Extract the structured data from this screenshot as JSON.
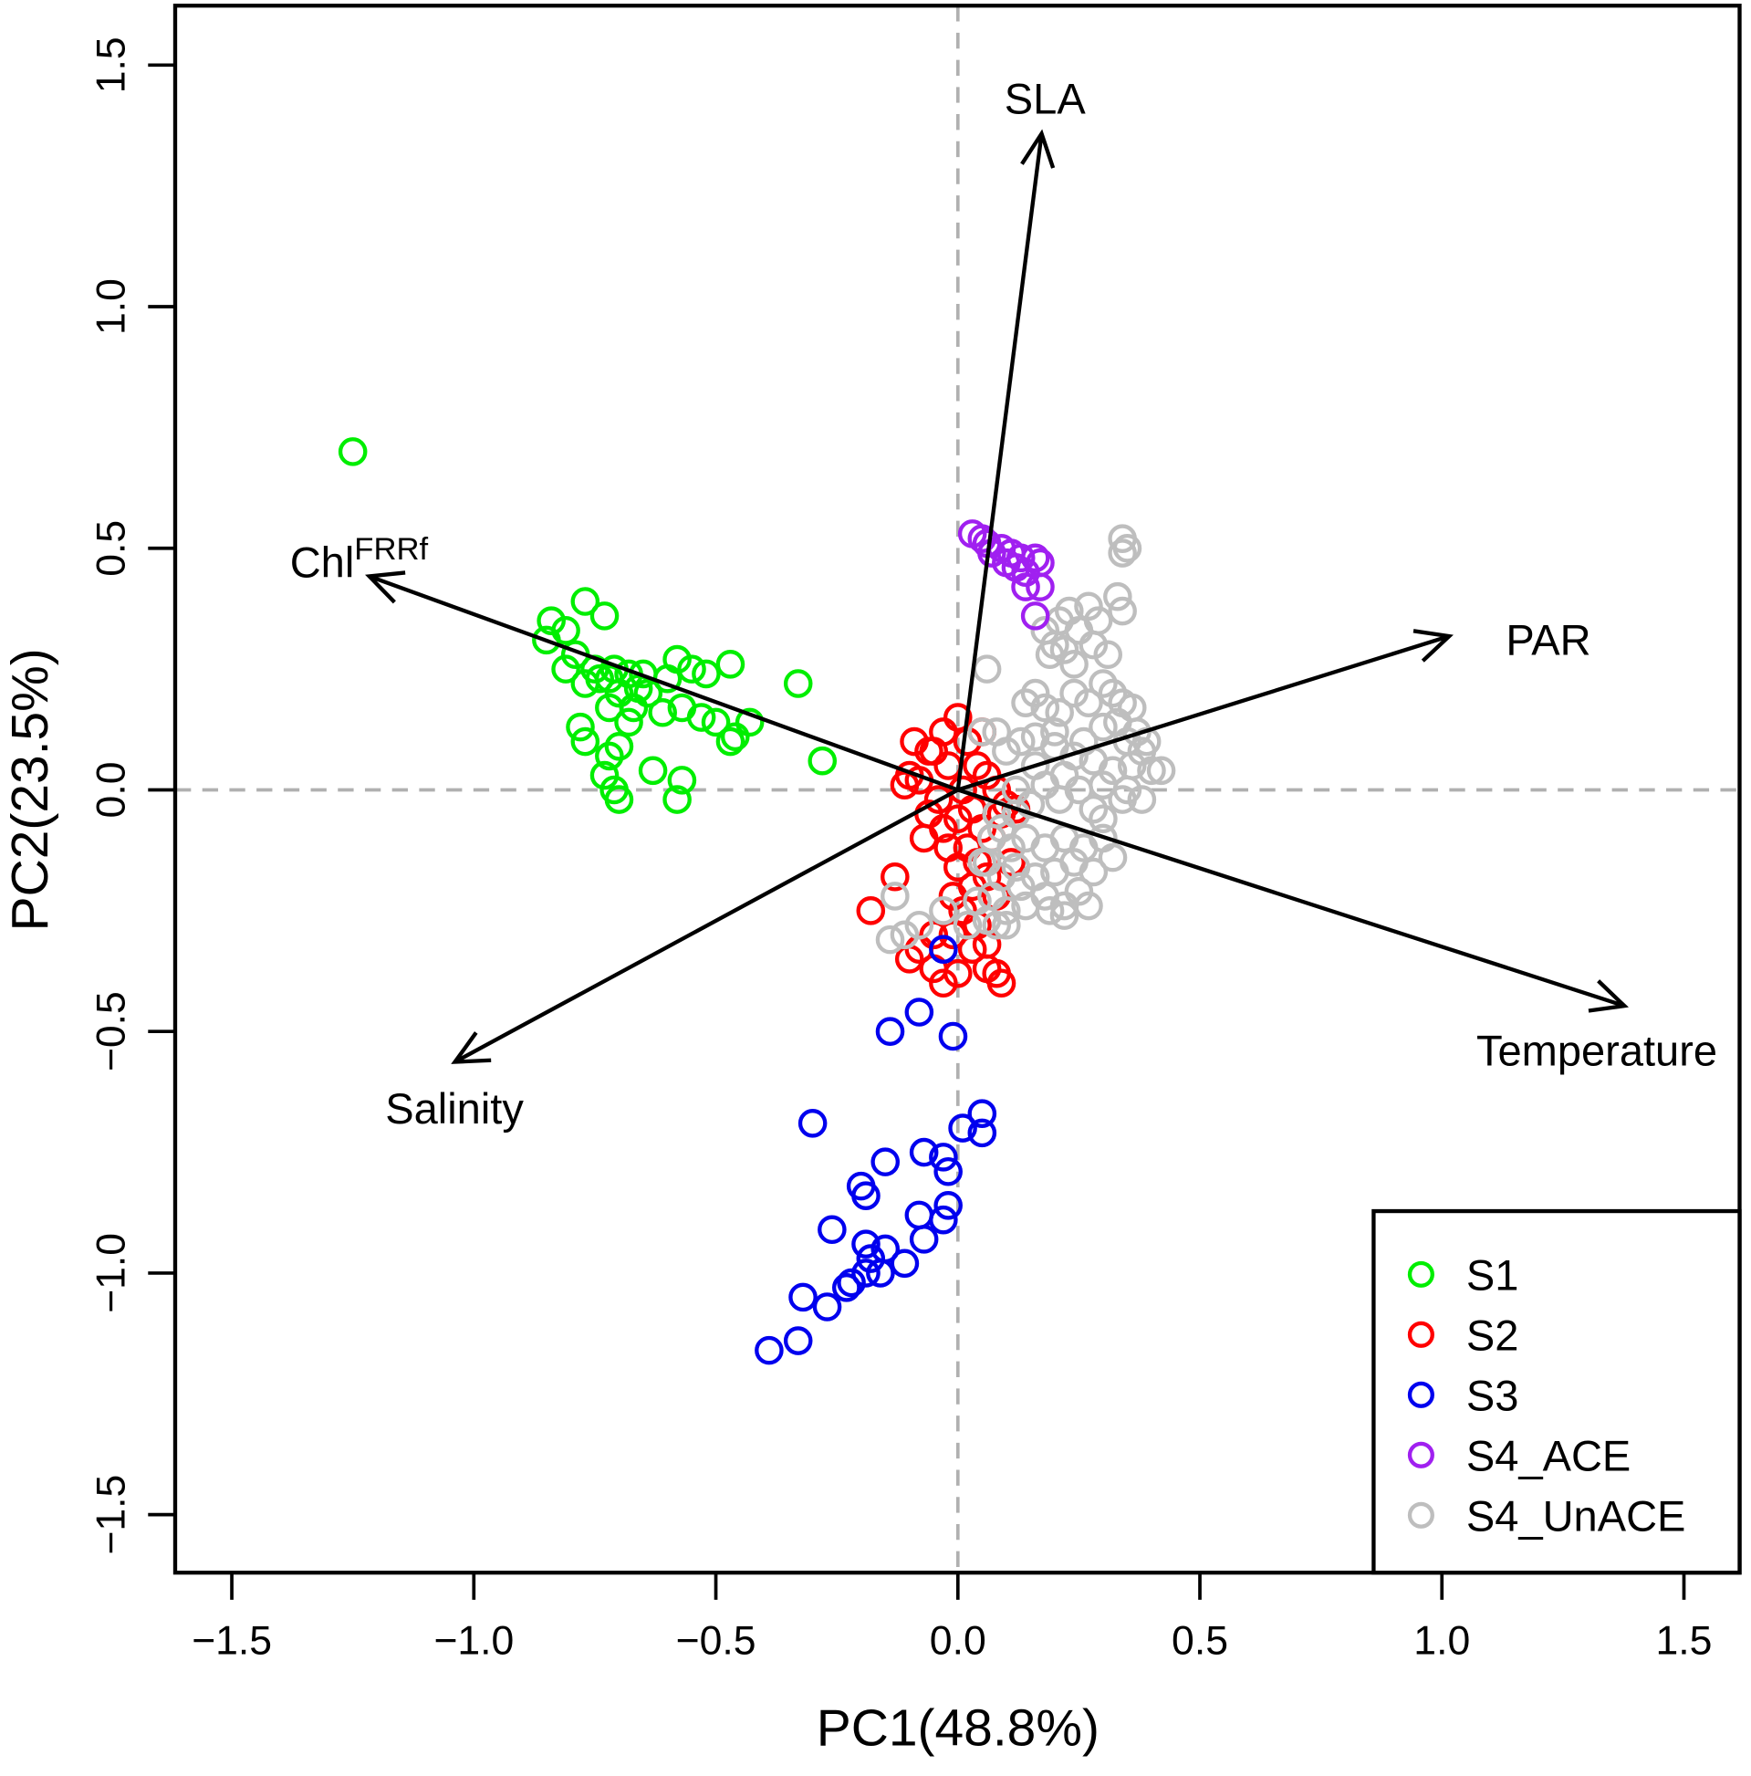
{
  "chart_data": {
    "type": "scatter",
    "subtype": "pca-biplot",
    "xlabel": "PC1(48.8%)",
    "ylabel": "PC2(23.5%)",
    "xlim": [
      -1.617,
      1.615
    ],
    "ylim": [
      -1.62,
      1.623
    ],
    "xticks": [
      -1.5,
      -1.0,
      -0.5,
      0.0,
      0.5,
      1.0,
      1.5
    ],
    "yticks": [
      -1.5,
      -1.0,
      -0.5,
      0.0,
      0.5,
      1.0,
      1.5
    ],
    "xtick_labels": [
      "−1.5",
      "−1.0",
      "−0.5",
      "0.0",
      "0.5",
      "1.0",
      "1.5"
    ],
    "ytick_labels": [
      "−1.5",
      "−1.0",
      "−0.5",
      "0.0",
      "0.5",
      "1.0",
      "1.5"
    ],
    "reference_lines": {
      "x": 0,
      "y": 0,
      "style": "dashed",
      "color": "#b0b0b0"
    },
    "legend_position": "bottom-right",
    "vectors": [
      {
        "name": "SLA",
        "label": "SLA",
        "x": 0.173,
        "y": 1.358,
        "label_x": 0.18,
        "label_y": 1.43,
        "anchor": "middle"
      },
      {
        "name": "PAR",
        "label": "PAR",
        "x": 1.015,
        "y": 0.318,
        "label_x": 1.22,
        "label_y": 0.31,
        "anchor": "middle"
      },
      {
        "name": "Temperature",
        "label": "Temperature",
        "x": 1.377,
        "y": -0.447,
        "label_x": 1.32,
        "label_y": -0.54,
        "anchor": "middle"
      },
      {
        "name": "Salinity",
        "label": "Salinity",
        "x": -1.039,
        "y": -0.563,
        "label_x": -1.04,
        "label_y": -0.66,
        "anchor": "middle"
      },
      {
        "name": "Chl",
        "label": "Chl",
        "superscript": "FRRf",
        "x": -1.216,
        "y": 0.442,
        "label_x": -1.38,
        "label_y": 0.47,
        "anchor": "start"
      }
    ],
    "series": [
      {
        "name": "S1",
        "color": "#00ee00",
        "points": [
          [
            -1.25,
            0.7
          ],
          [
            -0.84,
            0.35
          ],
          [
            -0.81,
            0.33
          ],
          [
            -0.77,
            0.39
          ],
          [
            -0.73,
            0.36
          ],
          [
            -0.85,
            0.31
          ],
          [
            -0.79,
            0.28
          ],
          [
            -0.75,
            0.25
          ],
          [
            -0.77,
            0.22
          ],
          [
            -0.72,
            0.23
          ],
          [
            -0.68,
            0.24
          ],
          [
            -0.66,
            0.21
          ],
          [
            -0.7,
            0.2
          ],
          [
            -0.72,
            0.17
          ],
          [
            -0.67,
            0.17
          ],
          [
            -0.64,
            0.2
          ],
          [
            -0.61,
            0.16
          ],
          [
            -0.58,
            0.27
          ],
          [
            -0.55,
            0.25
          ],
          [
            -0.52,
            0.24
          ],
          [
            -0.47,
            0.26
          ],
          [
            -0.57,
            0.17
          ],
          [
            -0.53,
            0.15
          ],
          [
            -0.5,
            0.14
          ],
          [
            -0.46,
            0.11
          ],
          [
            -0.43,
            0.14
          ],
          [
            -0.47,
            0.1
          ],
          [
            -0.33,
            0.22
          ],
          [
            -0.28,
            0.06
          ],
          [
            -0.78,
            0.13
          ],
          [
            -0.77,
            0.1
          ],
          [
            -0.7,
            0.09
          ],
          [
            -0.73,
            0.03
          ],
          [
            -0.71,
            0.0
          ],
          [
            -0.7,
            -0.02
          ],
          [
            -0.63,
            0.04
          ],
          [
            -0.57,
            0.02
          ],
          [
            -0.58,
            -0.02
          ],
          [
            -0.74,
            0.23
          ],
          [
            -0.71,
            0.25
          ],
          [
            -0.6,
            0.23
          ],
          [
            -0.81,
            0.25
          ],
          [
            -0.72,
            0.07
          ],
          [
            -0.68,
            0.14
          ],
          [
            -0.65,
            0.24
          ]
        ]
      },
      {
        "name": "S2",
        "color": "#ff0000",
        "points": [
          [
            -0.1,
            0.03
          ],
          [
            -0.08,
            0.02
          ],
          [
            -0.05,
            0.08
          ],
          [
            -0.03,
            0.12
          ],
          [
            0.0,
            0.15
          ],
          [
            0.02,
            0.1
          ],
          [
            -0.02,
            0.05
          ],
          [
            0.04,
            0.05
          ],
          [
            0.06,
            0.03
          ],
          [
            0.08,
            0.0
          ],
          [
            0.1,
            -0.03
          ],
          [
            0.12,
            -0.04
          ],
          [
            -0.04,
            -0.02
          ],
          [
            -0.06,
            -0.05
          ],
          [
            -0.03,
            -0.08
          ],
          [
            0.0,
            -0.06
          ],
          [
            0.03,
            -0.04
          ],
          [
            0.05,
            -0.08
          ],
          [
            0.07,
            -0.1
          ],
          [
            0.02,
            -0.12
          ],
          [
            -0.02,
            -0.12
          ],
          [
            0.0,
            -0.16
          ],
          [
            0.03,
            -0.2
          ],
          [
            0.06,
            -0.18
          ],
          [
            0.08,
            -0.22
          ],
          [
            0.01,
            -0.25
          ],
          [
            0.04,
            -0.28
          ],
          [
            -0.01,
            -0.3
          ],
          [
            0.06,
            -0.32
          ],
          [
            -0.05,
            -0.3
          ],
          [
            -0.08,
            -0.33
          ],
          [
            -0.1,
            -0.35
          ],
          [
            -0.05,
            -0.37
          ],
          [
            -0.03,
            -0.4
          ],
          [
            0.0,
            -0.38
          ],
          [
            0.06,
            -0.37
          ],
          [
            0.09,
            -0.4
          ],
          [
            0.08,
            -0.38
          ],
          [
            -0.13,
            -0.18
          ],
          [
            -0.18,
            -0.25
          ],
          [
            -0.06,
            0.08
          ],
          [
            -0.09,
            0.1
          ],
          [
            0.05,
            0.12
          ],
          [
            0.01,
            0.0
          ],
          [
            0.09,
            -0.05
          ],
          [
            0.11,
            -0.15
          ],
          [
            0.04,
            -0.15
          ],
          [
            -0.07,
            -0.1
          ],
          [
            -0.01,
            -0.22
          ],
          [
            0.03,
            -0.33
          ],
          [
            -0.11,
            0.01
          ]
        ]
      },
      {
        "name": "S3",
        "color": "#0000ee",
        "points": [
          [
            -0.03,
            -0.33
          ],
          [
            -0.14,
            -0.5
          ],
          [
            -0.08,
            -0.46
          ],
          [
            -0.01,
            -0.51
          ],
          [
            -0.3,
            -0.69
          ],
          [
            0.05,
            -0.67
          ],
          [
            0.01,
            -0.7
          ],
          [
            0.05,
            -0.71
          ],
          [
            -0.15,
            -0.77
          ],
          [
            -0.03,
            -0.76
          ],
          [
            -0.02,
            -0.79
          ],
          [
            -0.2,
            -0.82
          ],
          [
            -0.19,
            -0.84
          ],
          [
            -0.08,
            -0.88
          ],
          [
            -0.02,
            -0.86
          ],
          [
            -0.03,
            -0.89
          ],
          [
            -0.26,
            -0.91
          ],
          [
            -0.19,
            -0.94
          ],
          [
            -0.15,
            -0.95
          ],
          [
            -0.07,
            -0.93
          ],
          [
            -0.18,
            -0.97
          ],
          [
            -0.11,
            -0.98
          ],
          [
            -0.19,
            -1.0
          ],
          [
            -0.16,
            -1.0
          ],
          [
            -0.22,
            -1.02
          ],
          [
            -0.23,
            -1.03
          ],
          [
            -0.32,
            -1.05
          ],
          [
            -0.27,
            -1.07
          ],
          [
            -0.33,
            -1.14
          ],
          [
            -0.39,
            -1.16
          ],
          [
            -0.07,
            -0.75
          ]
        ]
      },
      {
        "name": "S4_UnACE",
        "color": "#bebebe",
        "points": [
          [
            0.34,
            0.52
          ],
          [
            0.35,
            0.5
          ],
          [
            0.34,
            0.49
          ],
          [
            0.33,
            0.4
          ],
          [
            0.34,
            0.37
          ],
          [
            0.27,
            0.38
          ],
          [
            0.29,
            0.35
          ],
          [
            0.23,
            0.37
          ],
          [
            0.21,
            0.35
          ],
          [
            0.18,
            0.33
          ],
          [
            0.2,
            0.3
          ],
          [
            0.19,
            0.28
          ],
          [
            0.22,
            0.29
          ],
          [
            0.25,
            0.33
          ],
          [
            0.28,
            0.3
          ],
          [
            0.31,
            0.28
          ],
          [
            0.24,
            0.26
          ],
          [
            0.06,
            0.25
          ],
          [
            0.16,
            0.2
          ],
          [
            0.14,
            0.18
          ],
          [
            0.18,
            0.17
          ],
          [
            0.21,
            0.16
          ],
          [
            0.24,
            0.2
          ],
          [
            0.27,
            0.18
          ],
          [
            0.3,
            0.22
          ],
          [
            0.32,
            0.2
          ],
          [
            0.34,
            0.18
          ],
          [
            0.36,
            0.17
          ],
          [
            0.33,
            0.14
          ],
          [
            0.3,
            0.13
          ],
          [
            0.37,
            0.12
          ],
          [
            0.39,
            0.1
          ],
          [
            0.35,
            0.1
          ],
          [
            0.05,
            0.12
          ],
          [
            0.08,
            0.12
          ],
          [
            0.1,
            0.08
          ],
          [
            0.13,
            0.1
          ],
          [
            0.16,
            0.11
          ],
          [
            0.2,
            0.09
          ],
          [
            0.24,
            0.07
          ],
          [
            0.28,
            0.06
          ],
          [
            0.32,
            0.04
          ],
          [
            0.36,
            0.05
          ],
          [
            0.4,
            0.04
          ],
          [
            0.42,
            0.04
          ],
          [
            0.38,
            0.08
          ],
          [
            0.26,
            0.1
          ],
          [
            0.22,
            0.03
          ],
          [
            0.18,
            0.01
          ],
          [
            0.25,
            0.0
          ],
          [
            0.3,
            0.01
          ],
          [
            0.34,
            -0.02
          ],
          [
            0.28,
            -0.04
          ],
          [
            0.21,
            -0.02
          ],
          [
            0.15,
            -0.03
          ],
          [
            0.12,
            -0.05
          ],
          [
            0.09,
            -0.08
          ],
          [
            0.07,
            -0.1
          ],
          [
            0.11,
            -0.12
          ],
          [
            0.14,
            -0.1
          ],
          [
            0.18,
            -0.12
          ],
          [
            0.22,
            -0.1
          ],
          [
            0.26,
            -0.12
          ],
          [
            0.3,
            -0.1
          ],
          [
            0.32,
            -0.14
          ],
          [
            0.28,
            -0.17
          ],
          [
            0.24,
            -0.15
          ],
          [
            0.2,
            -0.17
          ],
          [
            0.16,
            -0.18
          ],
          [
            0.12,
            -0.16
          ],
          [
            0.09,
            -0.18
          ],
          [
            0.07,
            -0.22
          ],
          [
            0.1,
            -0.25
          ],
          [
            0.14,
            -0.24
          ],
          [
            0.18,
            -0.22
          ],
          [
            0.22,
            -0.24
          ],
          [
            0.25,
            -0.21
          ],
          [
            0.27,
            -0.24
          ],
          [
            0.22,
            -0.26
          ],
          [
            0.19,
            -0.25
          ],
          [
            0.04,
            -0.23
          ],
          [
            0.06,
            -0.27
          ],
          [
            0.08,
            -0.28
          ],
          [
            0.1,
            -0.28
          ],
          [
            0.13,
            -0.2
          ],
          [
            -0.13,
            -0.22
          ],
          [
            -0.08,
            -0.28
          ],
          [
            -0.03,
            -0.25
          ],
          [
            -0.14,
            -0.31
          ],
          [
            -0.11,
            -0.3
          ],
          [
            0.02,
            -0.28
          ],
          [
            0.05,
            -0.15
          ],
          [
            0.08,
            -0.05
          ],
          [
            0.06,
            -0.15
          ],
          [
            0.12,
            0.0
          ],
          [
            0.16,
            0.05
          ],
          [
            0.2,
            0.12
          ],
          [
            0.3,
            -0.06
          ],
          [
            0.35,
            0.0
          ],
          [
            0.38,
            -0.02
          ]
        ]
      },
      {
        "name": "S4_ACE",
        "color": "#a020f0",
        "points": [
          [
            0.03,
            0.53
          ],
          [
            0.05,
            0.52
          ],
          [
            0.06,
            0.51
          ],
          [
            0.09,
            0.5
          ],
          [
            0.11,
            0.49
          ],
          [
            0.13,
            0.48
          ],
          [
            0.16,
            0.48
          ],
          [
            0.17,
            0.47
          ],
          [
            0.12,
            0.46
          ],
          [
            0.1,
            0.47
          ],
          [
            0.14,
            0.45
          ],
          [
            0.14,
            0.42
          ],
          [
            0.17,
            0.42
          ],
          [
            0.16,
            0.36
          ],
          [
            0.07,
            0.49
          ]
        ]
      }
    ],
    "legend": [
      {
        "label": "S1",
        "color": "#00ee00"
      },
      {
        "label": "S2",
        "color": "#ff0000"
      },
      {
        "label": "S3",
        "color": "#0000ee"
      },
      {
        "label": "S4_ACE",
        "color": "#a020f0"
      },
      {
        "label": "S4_UnACE",
        "color": "#bebebe"
      }
    ]
  }
}
